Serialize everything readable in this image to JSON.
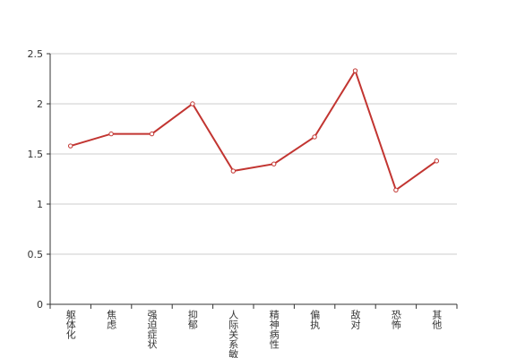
{
  "chart_data": {
    "type": "line",
    "categories": [
      "躯体化",
      "焦虑",
      "强迫症状",
      "抑郁",
      "人际关系敏感",
      "精神病性",
      "偏执",
      "敌对",
      "恐怖",
      "其他"
    ],
    "values": [
      1.58,
      1.7,
      1.7,
      2.0,
      1.33,
      1.4,
      1.67,
      2.33,
      1.14,
      1.43
    ],
    "color": "#c23531",
    "ylim": [
      0,
      2.5
    ],
    "yticks": [
      0,
      0.5,
      1,
      1.5,
      2,
      2.5
    ],
    "grid": true
  }
}
